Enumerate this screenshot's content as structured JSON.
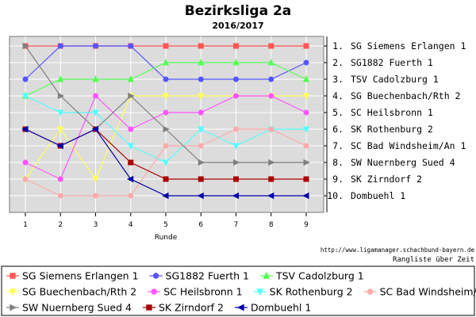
{
  "chart_data": {
    "type": "line",
    "title": "Bezirksliga 2a",
    "subtitle": "2016/2017",
    "xlabel": "Runde",
    "ylabel": "",
    "x": [
      1,
      2,
      3,
      4,
      5,
      6,
      7,
      8,
      9
    ],
    "ylim": [
      1,
      10
    ],
    "y_inverted": true,
    "grid": true,
    "legend_position": "bottom",
    "right_labels": [
      "1. SG Siemens Erlangen 1",
      "2. SG1882 Fuerth 1",
      "3. TSV Cadolzburg 1",
      "4. SG Buechenbach/Rth 2",
      "5. SC Heilsbronn 1",
      "6. SK Rothenburg 2",
      "7. SC Bad Windsheim/An 1",
      "8. SW Nuernberg Sued 4",
      "9. SK Zirndorf 2",
      "10. Dombuehl 1"
    ],
    "series": [
      {
        "name": "SG Siemens Erlangen 1",
        "color": "#ff5555",
        "marker": "square",
        "values": [
          1,
          1,
          1,
          1,
          1,
          1,
          1,
          1,
          1
        ]
      },
      {
        "name": "SG1882 Fuerth 1",
        "color": "#5555ff",
        "marker": "circle",
        "values": [
          3,
          1,
          1,
          1,
          3,
          3,
          3,
          3,
          2
        ]
      },
      {
        "name": "TSV Cadolzburg 1",
        "color": "#55ff55",
        "marker": "triangle-up",
        "values": [
          4,
          3,
          3,
          3,
          2,
          2,
          2,
          2,
          3
        ]
      },
      {
        "name": "SG Buechenbach/Rth 2",
        "color": "#ffff55",
        "marker": "triangle-down",
        "values": [
          9,
          6,
          9,
          4,
          4,
          4,
          4,
          4,
          4
        ]
      },
      {
        "name": "SC Heilsbronn 1",
        "color": "#ff55ff",
        "marker": "circle",
        "values": [
          8,
          9,
          4,
          6,
          5,
          5,
          4,
          4,
          5
        ]
      },
      {
        "name": "SK Rothenburg 2",
        "color": "#55ffff",
        "marker": "triangle-down",
        "values": [
          4,
          5,
          5,
          7,
          8,
          6,
          7,
          6,
          6
        ]
      },
      {
        "name": "SC Bad Windsheim/An 1",
        "color": "#ffaaaa",
        "marker": "circle",
        "values": [
          9,
          10,
          10,
          10,
          7,
          7,
          6,
          6,
          7
        ]
      },
      {
        "name": "SW Nuernberg Sued 4",
        "color": "#808080",
        "marker": "triangle-right",
        "values": [
          1,
          4,
          6,
          4,
          6,
          8,
          8,
          8,
          8
        ]
      },
      {
        "name": "SK Zirndorf 2",
        "color": "#aa0000",
        "marker": "square",
        "values": [
          6,
          7,
          6,
          8,
          9,
          9,
          9,
          9,
          9
        ]
      },
      {
        "name": "Dombuehl 1",
        "color": "#0000aa",
        "marker": "triangle-left",
        "values": [
          6,
          7,
          6,
          9,
          10,
          10,
          10,
          10,
          10
        ]
      }
    ]
  },
  "footer": {
    "url": "http://www.ligamanager.schachbund-bayern.de",
    "caption": "Rangliste über Zeit"
  }
}
